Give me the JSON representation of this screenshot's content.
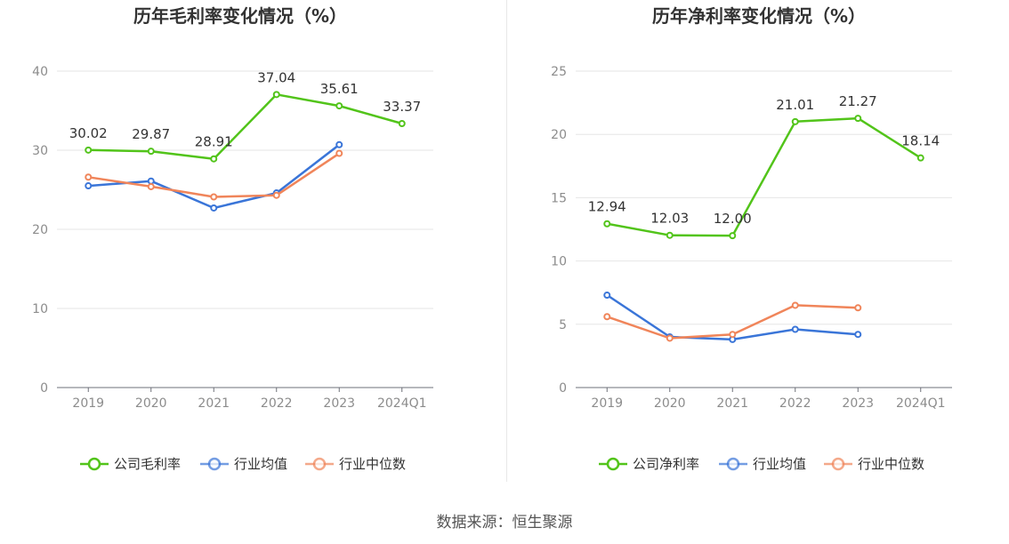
{
  "source_label": "数据来源：恒生聚源",
  "chart_data": [
    {
      "type": "line",
      "title": "历年毛利率变化情况（%）",
      "categories": [
        "2019",
        "2020",
        "2021",
        "2022",
        "2023",
        "2024Q1"
      ],
      "ylim": [
        0,
        40
      ],
      "yticks": [
        0,
        10,
        20,
        30,
        40
      ],
      "grid": true,
      "legend_position": "bottom-center",
      "series": [
        {
          "name": "公司毛利率",
          "color": "#52c41a",
          "values": [
            30.02,
            29.87,
            28.91,
            37.04,
            35.61,
            33.37
          ],
          "labels": [
            "30.02",
            "29.87",
            "28.91",
            "37.04",
            "35.61",
            "33.37"
          ]
        },
        {
          "name": "行业均值",
          "color": "#3a75d8",
          "values": [
            25.5,
            26.1,
            22.7,
            24.6,
            30.7,
            null
          ]
        },
        {
          "name": "行业中位数",
          "color": "#f0855a",
          "values": [
            26.6,
            25.4,
            24.1,
            24.3,
            29.6,
            null
          ]
        }
      ]
    },
    {
      "type": "line",
      "title": "历年净利率变化情况（%）",
      "categories": [
        "2019",
        "2020",
        "2021",
        "2022",
        "2023",
        "2024Q1"
      ],
      "ylim": [
        0,
        25
      ],
      "yticks": [
        0,
        5,
        10,
        15,
        20,
        25
      ],
      "grid": true,
      "legend_position": "bottom-center",
      "series": [
        {
          "name": "公司净利率",
          "color": "#52c41a",
          "values": [
            12.94,
            12.03,
            12.0,
            21.01,
            21.27,
            18.14
          ],
          "labels": [
            "12.94",
            "12.03",
            "12.00",
            "21.01",
            "21.27",
            "18.14"
          ]
        },
        {
          "name": "行业均值",
          "color": "#3a75d8",
          "values": [
            7.3,
            4.0,
            3.8,
            4.6,
            4.2,
            null
          ]
        },
        {
          "name": "行业中位数",
          "color": "#f0855a",
          "values": [
            5.6,
            3.9,
            4.2,
            6.5,
            6.3,
            null
          ]
        }
      ]
    }
  ]
}
